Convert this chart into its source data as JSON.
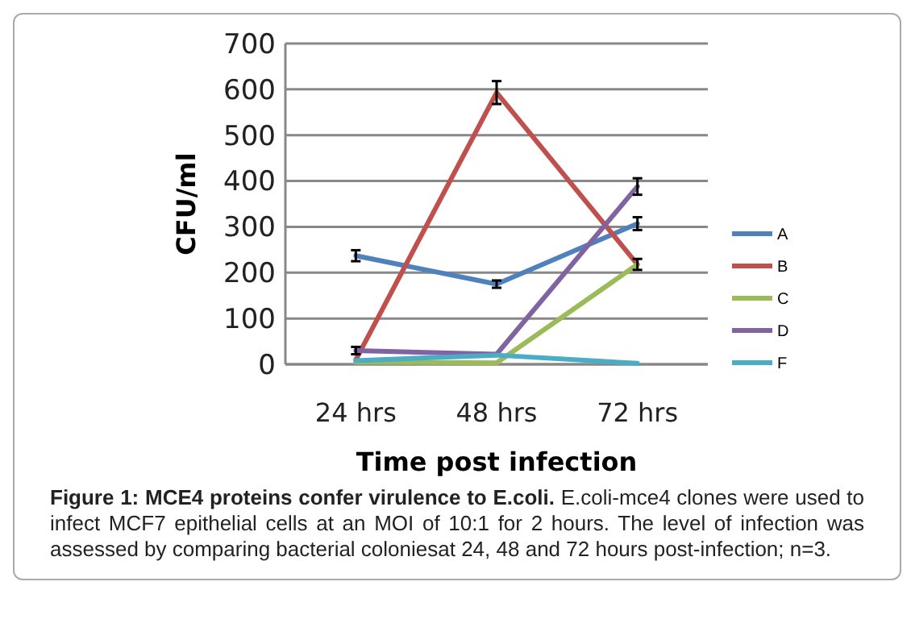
{
  "chart_data": {
    "type": "line",
    "ylabel": "CFU/ml",
    "xlabel": "Time post infection",
    "categories": [
      "24 hrs",
      "48 hrs",
      "72 hrs"
    ],
    "series": [
      {
        "name": "A",
        "color": "#4f81bd",
        "values": [
          237,
          175,
          307
        ],
        "errors": [
          12,
          8,
          14
        ]
      },
      {
        "name": "B",
        "color": "#c0504d",
        "values": [
          10,
          593,
          218
        ],
        "errors": [
          null,
          25,
          12
        ]
      },
      {
        "name": "C",
        "color": "#9bbb59",
        "values": [
          5,
          3,
          218
        ]
      },
      {
        "name": "D",
        "color": "#8064a2",
        "values": [
          30,
          22,
          388
        ],
        "errors": [
          8,
          null,
          18
        ]
      },
      {
        "name": "F",
        "color": "#4bacc6",
        "values": [
          8,
          20,
          2
        ]
      }
    ],
    "ylim": [
      0,
      700
    ],
    "yticks": [
      0,
      100,
      200,
      300,
      400,
      500,
      600,
      700
    ],
    "grid": "y",
    "legend": "right",
    "marker": "none",
    "line_style": "solid",
    "annotations": [
      "Figure 1: MCE4 proteins confer virulence to E.coli.",
      "E.coli-mce4 clones were used to infect MCF7 epithelial cells at an MOI of 10:1 for 2 hours. The level of infection was assessed by comparing bacterial coloniesat 24, 48 and 72 hours post-infection; n=3."
    ]
  }
}
